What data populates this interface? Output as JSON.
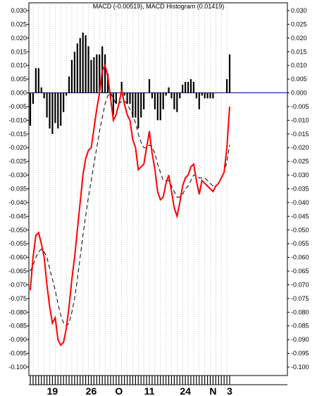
{
  "chart_data": {
    "type": "line",
    "title": "MACD (-0.00519), MACD Histogram (0.01419)",
    "ylim": [
      -0.1,
      0.03
    ],
    "y_ticks": [
      0.03,
      0.025,
      0.02,
      0.015,
      0.01,
      0.005,
      0.0,
      -0.005,
      -0.01,
      -0.015,
      -0.02,
      -0.025,
      -0.03,
      -0.035,
      -0.04,
      -0.045,
      -0.05,
      -0.055,
      -0.06,
      -0.065,
      -0.07,
      -0.075,
      -0.08,
      -0.085,
      -0.09,
      -0.095,
      -0.1
    ],
    "y_tick_labels": [
      "0.030",
      "0.025",
      "0.020",
      "0.015",
      "0.010",
      "0.005",
      "0.000",
      "-0.005",
      "-0.010",
      "-0.015",
      "-0.020",
      "-0.025",
      "-0.030",
      "-0.035",
      "-0.040",
      "-0.045",
      "-0.050",
      "-0.055",
      "-0.060",
      "-0.065",
      "-0.070",
      "-0.075",
      "-0.080",
      "-0.085",
      "-0.090",
      "-0.095",
      "-0.100"
    ],
    "x_tick_labels": [
      {
        "label": "19",
        "index": 8
      },
      {
        "label": "26",
        "index": 22
      },
      {
        "label": "O",
        "index": 32
      },
      {
        "label": "11",
        "index": 43
      },
      {
        "label": "24",
        "index": 56
      },
      {
        "label": "N",
        "index": 66
      },
      {
        "label": "3",
        "index": 72
      }
    ],
    "n_points": 73,
    "series": [
      {
        "role": "macd",
        "color": "#ff0000",
        "values": [
          -0.072,
          -0.06,
          -0.052,
          -0.051,
          -0.055,
          -0.06,
          -0.07,
          -0.078,
          -0.084,
          -0.082,
          -0.09,
          -0.092,
          -0.091,
          -0.086,
          -0.078,
          -0.068,
          -0.06,
          -0.05,
          -0.04,
          -0.03,
          -0.024,
          -0.021,
          -0.02,
          -0.013,
          -0.006,
          0.0,
          0.008,
          0.01,
          0.006,
          -0.002,
          -0.01,
          -0.008,
          -0.004,
          0.001,
          -0.004,
          -0.008,
          -0.01,
          -0.017,
          -0.02,
          -0.028,
          -0.027,
          -0.026,
          -0.02,
          -0.014,
          -0.022,
          -0.028,
          -0.036,
          -0.039,
          -0.038,
          -0.033,
          -0.03,
          -0.036,
          -0.042,
          -0.045,
          -0.04,
          -0.034,
          -0.031,
          -0.03,
          -0.027,
          -0.026,
          -0.032,
          -0.037,
          -0.032,
          -0.033,
          -0.034,
          -0.035,
          -0.036,
          -0.034,
          -0.033,
          -0.031,
          -0.029,
          -0.02,
          -0.005
        ]
      },
      {
        "role": "signal",
        "color": "#000000",
        "dash": true,
        "values": [
          -0.065,
          -0.063,
          -0.06,
          -0.058,
          -0.057,
          -0.058,
          -0.06,
          -0.064,
          -0.068,
          -0.072,
          -0.077,
          -0.081,
          -0.084,
          -0.085,
          -0.084,
          -0.08,
          -0.075,
          -0.068,
          -0.06,
          -0.052,
          -0.045,
          -0.038,
          -0.032,
          -0.026,
          -0.02,
          -0.014,
          -0.009,
          -0.004,
          -0.001,
          0.0,
          -0.002,
          -0.004,
          -0.004,
          -0.003,
          -0.003,
          -0.004,
          -0.006,
          -0.008,
          -0.011,
          -0.015,
          -0.018,
          -0.02,
          -0.02,
          -0.019,
          -0.02,
          -0.022,
          -0.026,
          -0.029,
          -0.032,
          -0.032,
          -0.032,
          -0.034,
          -0.036,
          -0.038,
          -0.038,
          -0.037,
          -0.035,
          -0.034,
          -0.032,
          -0.03,
          -0.03,
          -0.031,
          -0.031,
          -0.031,
          -0.032,
          -0.033,
          -0.034,
          -0.034,
          -0.033,
          -0.031,
          -0.029,
          -0.025,
          -0.019
        ]
      },
      {
        "role": "histogram",
        "color": "#000000",
        "values": [
          -0.012,
          -0.004,
          0.009,
          0.009,
          0.002,
          -0.002,
          -0.009,
          -0.013,
          -0.015,
          -0.011,
          -0.013,
          -0.012,
          -0.007,
          -0.001,
          0.006,
          0.012,
          0.015,
          0.018,
          0.02,
          0.022,
          0.021,
          0.017,
          0.012,
          0.013,
          0.014,
          0.014,
          0.017,
          0.014,
          0.007,
          -0.002,
          -0.008,
          -0.004,
          0.0,
          0.004,
          -0.001,
          -0.004,
          -0.004,
          -0.009,
          -0.009,
          -0.013,
          -0.009,
          -0.006,
          0.0,
          0.005,
          -0.002,
          -0.006,
          -0.01,
          -0.01,
          -0.006,
          -0.001,
          0.002,
          -0.002,
          -0.006,
          -0.007,
          -0.002,
          0.003,
          0.004,
          0.004,
          0.005,
          0.004,
          -0.002,
          -0.006,
          -0.001,
          -0.002,
          -0.002,
          -0.002,
          -0.002,
          0.0,
          0.0,
          0.0,
          0.0,
          0.005,
          0.014
        ]
      }
    ],
    "colors": {
      "zero_line": "#00008b",
      "grid": "#a0a0a0",
      "frame": "#000000"
    }
  }
}
